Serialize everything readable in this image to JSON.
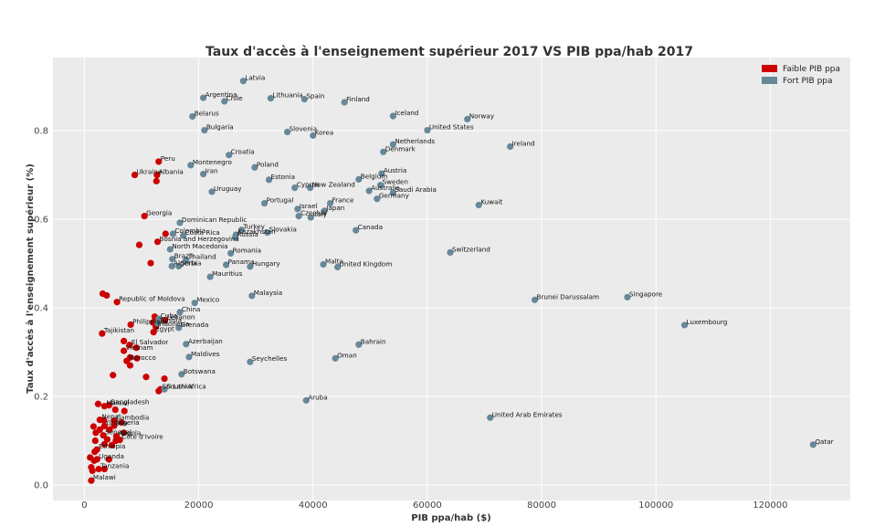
{
  "chart_data": {
    "type": "scatter",
    "title": "Taux d'accès à l'enseignement supérieur 2017 VS PIB ppa/hab 2017",
    "xlabel": "PIB ppa/hab ($)",
    "ylabel": "Taux d'accès à l'enseignement supérieur (%)",
    "xlim": [
      -5500,
      134000
    ],
    "ylim": [
      -0.035,
      0.965
    ],
    "xticks": [
      0,
      20000,
      40000,
      60000,
      80000,
      100000,
      120000
    ],
    "xtick_labels": [
      "0",
      "20000",
      "40000",
      "60000",
      "80000",
      "100000",
      "120000"
    ],
    "yticks": [
      0.0,
      0.2,
      0.4,
      0.6,
      0.8
    ],
    "ytick_labels": [
      "0.0",
      "0.2",
      "0.4",
      "0.6",
      "0.8"
    ],
    "grid": true,
    "legend_position": "top-right",
    "colors": {
      "low": "#cc0000",
      "high": "#668899",
      "background": "#ebebeb",
      "grid": "#ffffff"
    },
    "series": [
      {
        "name": "Faible PIB ppa",
        "color": "#cc0000",
        "points": [
          {
            "x": 13000,
            "y": 0.73,
            "label": "Peru"
          },
          {
            "x": 8800,
            "y": 0.7,
            "label": "Ukraine"
          },
          {
            "x": 12700,
            "y": 0.7,
            "label": "Albania"
          },
          {
            "x": 12600,
            "y": 0.686,
            "label": ""
          },
          {
            "x": 10500,
            "y": 0.607,
            "label": "Georgia"
          },
          {
            "x": 14200,
            "y": 0.567,
            "label": ""
          },
          {
            "x": 12800,
            "y": 0.549,
            "label": "Bosnia and Herzegovina"
          },
          {
            "x": 9600,
            "y": 0.542,
            "label": ""
          },
          {
            "x": 11600,
            "y": 0.501,
            "label": ""
          },
          {
            "x": 3200,
            "y": 0.432,
            "label": ""
          },
          {
            "x": 3900,
            "y": 0.428,
            "label": ""
          },
          {
            "x": 5700,
            "y": 0.413,
            "label": "Republic of Moldova"
          },
          {
            "x": 12300,
            "y": 0.38,
            "label": ""
          },
          {
            "x": 14100,
            "y": 0.372,
            "label": "Lebanon"
          },
          {
            "x": 12000,
            "y": 0.367,
            "label": ""
          },
          {
            "x": 8100,
            "y": 0.362,
            "label": "Philippines"
          },
          {
            "x": 12500,
            "y": 0.357,
            "label": "Indonesia"
          },
          {
            "x": 12100,
            "y": 0.345,
            "label": "Egypt"
          },
          {
            "x": 3100,
            "y": 0.342,
            "label": "Tajikistan"
          },
          {
            "x": 6900,
            "y": 0.325,
            "label": ""
          },
          {
            "x": 7900,
            "y": 0.316,
            "label": "El Salvador"
          },
          {
            "x": 9100,
            "y": 0.31,
            "label": ""
          },
          {
            "x": 6900,
            "y": 0.303,
            "label": "Vietnam"
          },
          {
            "x": 8000,
            "y": 0.288,
            "label": ""
          },
          {
            "x": 9200,
            "y": 0.286,
            "label": ""
          },
          {
            "x": 7400,
            "y": 0.28,
            "label": "Morocco"
          },
          {
            "x": 8000,
            "y": 0.27,
            "label": ""
          },
          {
            "x": 5000,
            "y": 0.248,
            "label": ""
          },
          {
            "x": 10800,
            "y": 0.244,
            "label": ""
          },
          {
            "x": 14000,
            "y": 0.24,
            "label": ""
          },
          {
            "x": 13300,
            "y": 0.216,
            "label": "Sri Lanka"
          },
          {
            "x": 13000,
            "y": 0.212,
            "label": ""
          },
          {
            "x": 2400,
            "y": 0.183,
            "label": ""
          },
          {
            "x": 4300,
            "y": 0.18,
            "label": "Bangladesh"
          },
          {
            "x": 3500,
            "y": 0.178,
            "label": "Malawi"
          },
          {
            "x": 5400,
            "y": 0.17,
            "label": ""
          },
          {
            "x": 7000,
            "y": 0.167,
            "label": ""
          },
          {
            "x": 2700,
            "y": 0.147,
            "label": "Nepal"
          },
          {
            "x": 3400,
            "y": 0.146,
            "label": ""
          },
          {
            "x": 5200,
            "y": 0.145,
            "label": "Cambodia"
          },
          {
            "x": 6500,
            "y": 0.141,
            "label": ""
          },
          {
            "x": 1600,
            "y": 0.132,
            "label": ""
          },
          {
            "x": 3500,
            "y": 0.133,
            "label": "Ghana"
          },
          {
            "x": 5200,
            "y": 0.134,
            "label": "Nigeria"
          },
          {
            "x": 2700,
            "y": 0.125,
            "label": ""
          },
          {
            "x": 4400,
            "y": 0.125,
            "label": ""
          },
          {
            "x": 6900,
            "y": 0.118,
            "label": ""
          },
          {
            "x": 2000,
            "y": 0.118,
            "label": ""
          },
          {
            "x": 3300,
            "y": 0.112,
            "label": "Senegal"
          },
          {
            "x": 5600,
            "y": 0.11,
            "label": "Angola"
          },
          {
            "x": 4000,
            "y": 0.103,
            "label": ""
          },
          {
            "x": 6200,
            "y": 0.102,
            "label": "Côte d'Ivoire"
          },
          {
            "x": 5500,
            "y": 0.1,
            "label": ""
          },
          {
            "x": 1900,
            "y": 0.1,
            "label": ""
          },
          {
            "x": 3500,
            "y": 0.092,
            "label": ""
          },
          {
            "x": 4800,
            "y": 0.09,
            "label": ""
          },
          {
            "x": 2200,
            "y": 0.08,
            "label": "Ethiopia"
          },
          {
            "x": 1800,
            "y": 0.075,
            "label": ""
          },
          {
            "x": 1000,
            "y": 0.062,
            "label": ""
          },
          {
            "x": 2200,
            "y": 0.058,
            "label": "Uganda"
          },
          {
            "x": 1700,
            "y": 0.055,
            "label": ""
          },
          {
            "x": 4300,
            "y": 0.058,
            "label": ""
          },
          {
            "x": 1200,
            "y": 0.04,
            "label": ""
          },
          {
            "x": 2500,
            "y": 0.036,
            "label": "Tanzania"
          },
          {
            "x": 1400,
            "y": 0.032,
            "label": ""
          },
          {
            "x": 3500,
            "y": 0.036,
            "label": ""
          },
          {
            "x": 1200,
            "y": 0.01,
            "label": "Malawi"
          }
        ]
      },
      {
        "name": "Fort PIB ppa",
        "color": "#668899",
        "points": [
          {
            "x": 27800,
            "y": 0.912,
            "label": "Latvia"
          },
          {
            "x": 20800,
            "y": 0.874,
            "label": "Argentina"
          },
          {
            "x": 24500,
            "y": 0.866,
            "label": "Chile"
          },
          {
            "x": 32600,
            "y": 0.873,
            "label": "Lithuania"
          },
          {
            "x": 38500,
            "y": 0.871,
            "label": "Spain"
          },
          {
            "x": 45500,
            "y": 0.864,
            "label": "Finland"
          },
          {
            "x": 18900,
            "y": 0.832,
            "label": "Belarus"
          },
          {
            "x": 54000,
            "y": 0.833,
            "label": "Iceland"
          },
          {
            "x": 67000,
            "y": 0.826,
            "label": "Norway"
          },
          {
            "x": 21000,
            "y": 0.801,
            "label": "Bulgaria"
          },
          {
            "x": 35500,
            "y": 0.797,
            "label": "Slovenia"
          },
          {
            "x": 40000,
            "y": 0.789,
            "label": "Korea"
          },
          {
            "x": 60000,
            "y": 0.801,
            "label": "United States"
          },
          {
            "x": 54000,
            "y": 0.769,
            "label": "Netherlands"
          },
          {
            "x": 52300,
            "y": 0.752,
            "label": "Denmark"
          },
          {
            "x": 74500,
            "y": 0.764,
            "label": "Ireland"
          },
          {
            "x": 25300,
            "y": 0.745,
            "label": "Croatia"
          },
          {
            "x": 18600,
            "y": 0.722,
            "label": "Montenegro"
          },
          {
            "x": 29800,
            "y": 0.717,
            "label": "Poland"
          },
          {
            "x": 20800,
            "y": 0.702,
            "label": "Iran"
          },
          {
            "x": 52000,
            "y": 0.703,
            "label": "Austria"
          },
          {
            "x": 32300,
            "y": 0.689,
            "label": "Estonia"
          },
          {
            "x": 48000,
            "y": 0.69,
            "label": "Belgium"
          },
          {
            "x": 51800,
            "y": 0.677,
            "label": "Sweden"
          },
          {
            "x": 36800,
            "y": 0.671,
            "label": "Cyprus"
          },
          {
            "x": 39500,
            "y": 0.671,
            "label": "New Zealand"
          },
          {
            "x": 49800,
            "y": 0.664,
            "label": "Australia"
          },
          {
            "x": 54000,
            "y": 0.66,
            "label": "Saudi Arabia"
          },
          {
            "x": 22300,
            "y": 0.662,
            "label": "Uruguay"
          },
          {
            "x": 51200,
            "y": 0.646,
            "label": "Germany"
          },
          {
            "x": 69000,
            "y": 0.632,
            "label": "Kuwait"
          },
          {
            "x": 31500,
            "y": 0.636,
            "label": "Portugal"
          },
          {
            "x": 43000,
            "y": 0.636,
            "label": "France"
          },
          {
            "x": 37300,
            "y": 0.623,
            "label": "Israel"
          },
          {
            "x": 42000,
            "y": 0.619,
            "label": "Japan"
          },
          {
            "x": 37500,
            "y": 0.607,
            "label": "Czechia"
          },
          {
            "x": 39600,
            "y": 0.604,
            "label": "Italy"
          },
          {
            "x": 16700,
            "y": 0.592,
            "label": "Dominican Republic"
          },
          {
            "x": 27500,
            "y": 0.576,
            "label": "Turkey"
          },
          {
            "x": 47500,
            "y": 0.575,
            "label": "Canada"
          },
          {
            "x": 32000,
            "y": 0.57,
            "label": "Slovakia"
          },
          {
            "x": 15500,
            "y": 0.567,
            "label": "Colombia"
          },
          {
            "x": 26500,
            "y": 0.565,
            "label": "Kazakhstan"
          },
          {
            "x": 17300,
            "y": 0.563,
            "label": "Costa Rica"
          },
          {
            "x": 26400,
            "y": 0.559,
            "label": "Russia"
          },
          {
            "x": 15000,
            "y": 0.532,
            "label": "North Macedonia"
          },
          {
            "x": 25600,
            "y": 0.523,
            "label": "Romania"
          },
          {
            "x": 64000,
            "y": 0.525,
            "label": "Switzerland"
          },
          {
            "x": 15400,
            "y": 0.51,
            "label": "Brazil"
          },
          {
            "x": 17800,
            "y": 0.508,
            "label": "Thailand"
          },
          {
            "x": 24800,
            "y": 0.497,
            "label": "Panama"
          },
          {
            "x": 15300,
            "y": 0.494,
            "label": "Algeria"
          },
          {
            "x": 16500,
            "y": 0.494,
            "label": "Serbia"
          },
          {
            "x": 29000,
            "y": 0.493,
            "label": "Hungary"
          },
          {
            "x": 41800,
            "y": 0.498,
            "label": "Malta"
          },
          {
            "x": 44300,
            "y": 0.492,
            "label": "United Kingdom"
          },
          {
            "x": 22000,
            "y": 0.47,
            "label": "Mauritius"
          },
          {
            "x": 29300,
            "y": 0.427,
            "label": "Malaysia"
          },
          {
            "x": 78800,
            "y": 0.418,
            "label": "Brunei Darussalam"
          },
          {
            "x": 95000,
            "y": 0.424,
            "label": "Singapore"
          },
          {
            "x": 19300,
            "y": 0.411,
            "label": "Mexico"
          },
          {
            "x": 16700,
            "y": 0.39,
            "label": "China"
          },
          {
            "x": 105000,
            "y": 0.361,
            "label": "Luxembourg"
          },
          {
            "x": 13000,
            "y": 0.375,
            "label": "Cuba"
          },
          {
            "x": 12800,
            "y": 0.365,
            "label": "Tunisia"
          },
          {
            "x": 16500,
            "y": 0.355,
            "label": "Grenada"
          },
          {
            "x": 17800,
            "y": 0.318,
            "label": "Azerbaijan"
          },
          {
            "x": 48000,
            "y": 0.317,
            "label": "Bahrain"
          },
          {
            "x": 18300,
            "y": 0.289,
            "label": "Maldives"
          },
          {
            "x": 43900,
            "y": 0.286,
            "label": "Oman"
          },
          {
            "x": 29000,
            "y": 0.278,
            "label": "Seychelles"
          },
          {
            "x": 17000,
            "y": 0.25,
            "label": "Botswana"
          },
          {
            "x": 14000,
            "y": 0.216,
            "label": "South Africa"
          },
          {
            "x": 38800,
            "y": 0.191,
            "label": "Aruba"
          },
          {
            "x": 71000,
            "y": 0.152,
            "label": "United Arab Emirates"
          },
          {
            "x": 127500,
            "y": 0.091,
            "label": "Qatar"
          }
        ]
      }
    ]
  }
}
